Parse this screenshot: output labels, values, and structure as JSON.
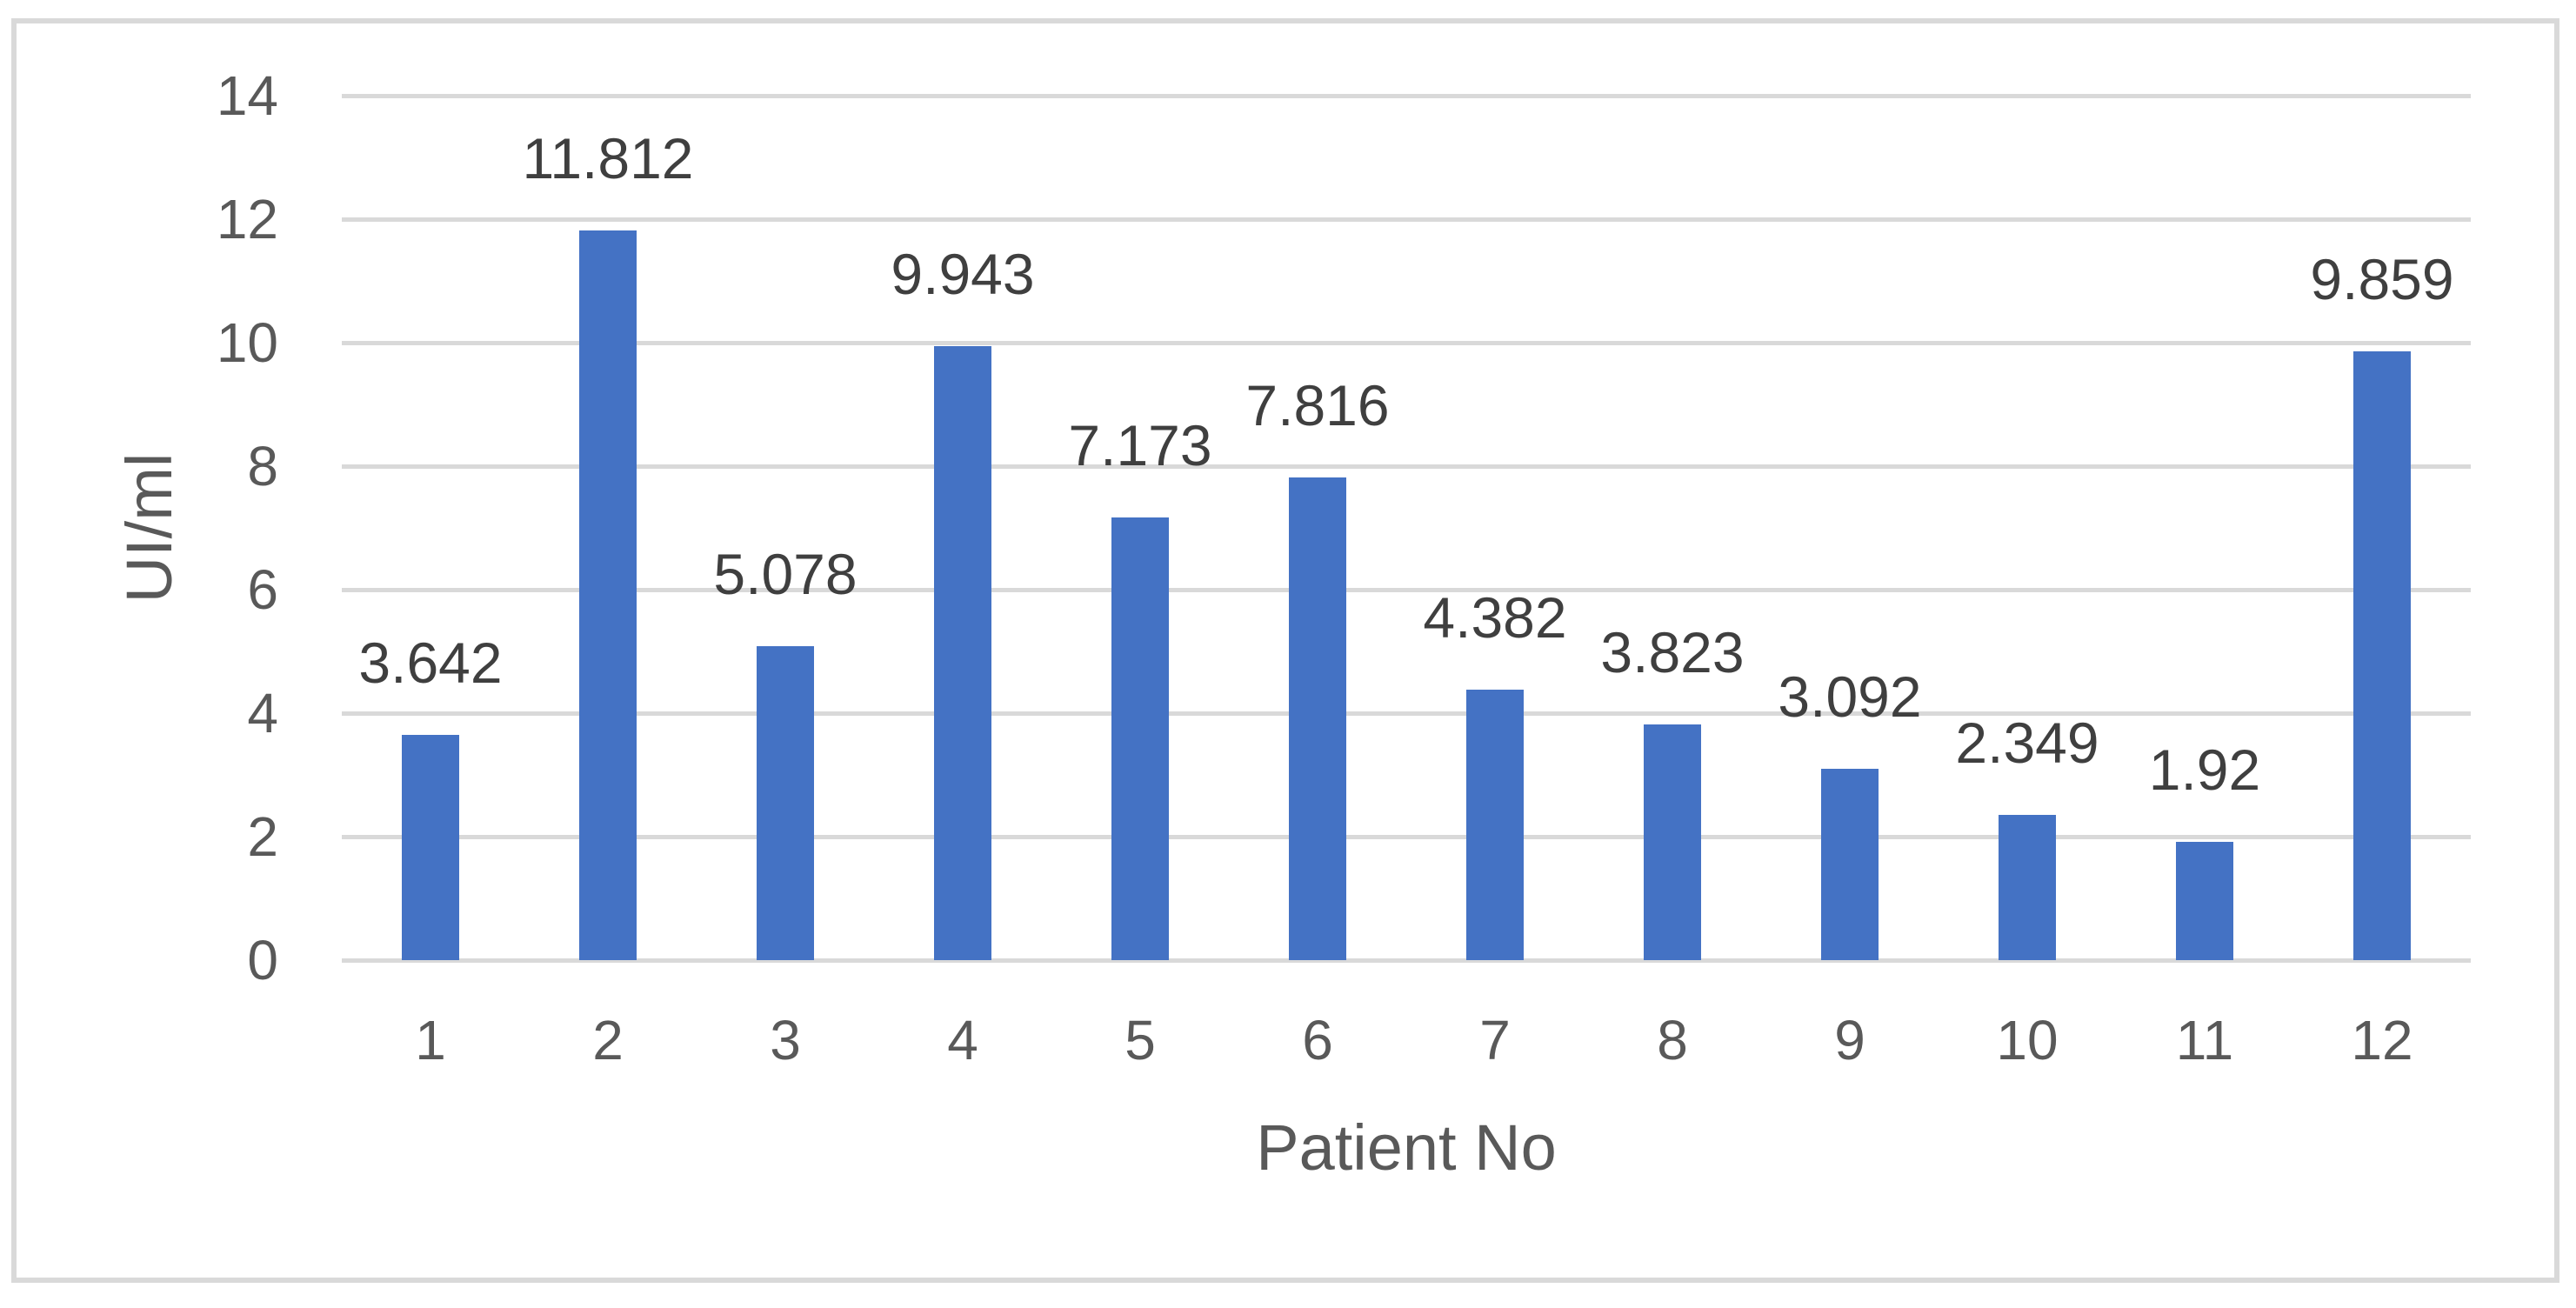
{
  "chart_data": {
    "type": "bar",
    "title": "",
    "xlabel": "Patient No",
    "ylabel": "UI/ml",
    "categories": [
      "1",
      "2",
      "3",
      "4",
      "5",
      "6",
      "7",
      "8",
      "9",
      "10",
      "11",
      "12"
    ],
    "values": [
      3.642,
      11.812,
      5.078,
      9.943,
      7.173,
      7.816,
      4.382,
      3.823,
      3.092,
      2.349,
      1.92,
      9.859
    ],
    "value_labels": [
      "3.642",
      "11.812",
      "5.078",
      "9.943",
      "7.173",
      "7.816",
      "4.382",
      "3.823",
      "3.092",
      "2.349",
      "1.92",
      "9.859"
    ],
    "ylim": [
      0,
      14
    ],
    "yticks": [
      0,
      2,
      4,
      6,
      8,
      10,
      12,
      14
    ],
    "grid": true,
    "legend": false,
    "bar_color": "#4472c4",
    "gridline_color": "#d9d9d9",
    "axis_text_color": "#595959",
    "data_label_color": "#3f3f3f",
    "frame_border_color": "#d9d9d9"
  }
}
